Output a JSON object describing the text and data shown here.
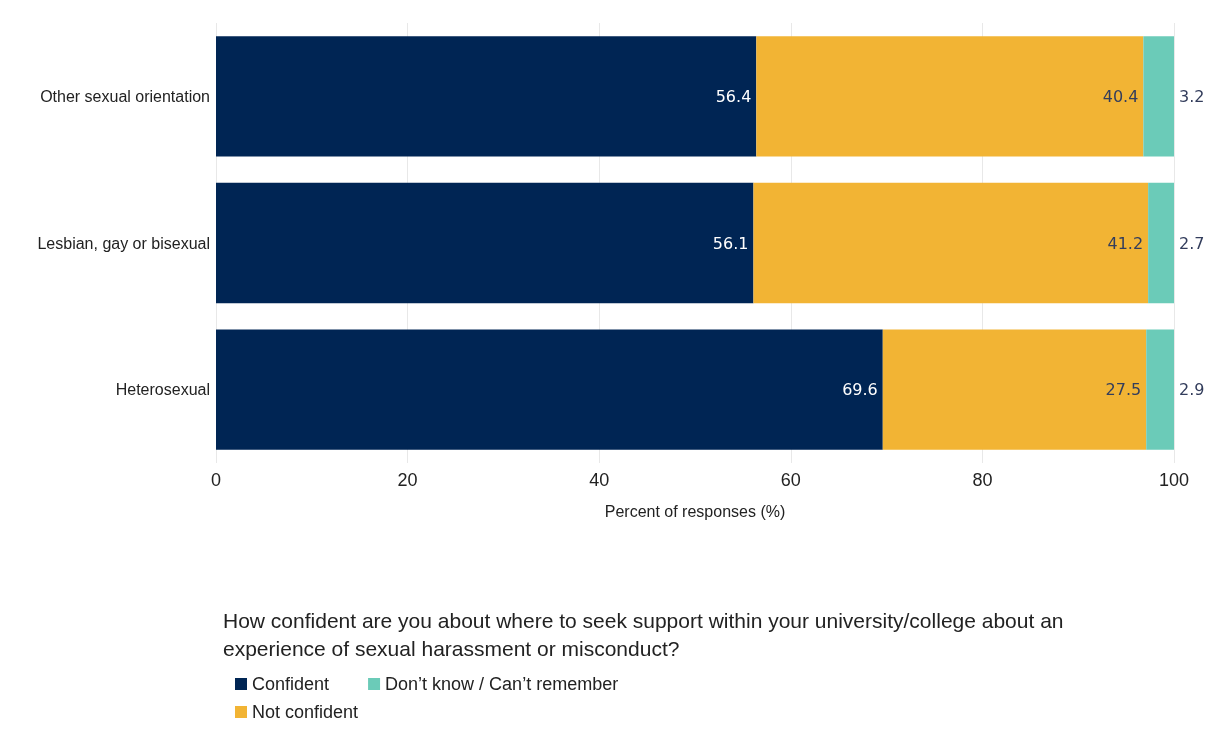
{
  "chart_data": {
    "type": "bar",
    "orientation": "horizontal",
    "stacked": true,
    "categories": [
      "Other sexual orientation",
      "Lesbian, gay or bisexual",
      "Heterosexual"
    ],
    "series": [
      {
        "name": "Confident",
        "color": "#002554",
        "values": [
          56.4,
          56.1,
          69.6
        ]
      },
      {
        "name": "Not confident",
        "color": "#f2b434",
        "values": [
          40.4,
          41.2,
          27.5
        ]
      },
      {
        "name": "Don’t know / Can’t remember",
        "color": "#6bcbb8",
        "values": [
          3.2,
          2.7,
          2.9
        ]
      }
    ],
    "xlim": [
      0,
      100
    ],
    "xticks": [
      0,
      20,
      40,
      60,
      80,
      100
    ],
    "xlabel": "Percent of responses (%)",
    "legend_title": "How confident are you about where to seek support within your university/college about an experience of sexual harassment or misconduct?",
    "legend": "bottom",
    "grid": "x",
    "data_labels": true
  }
}
